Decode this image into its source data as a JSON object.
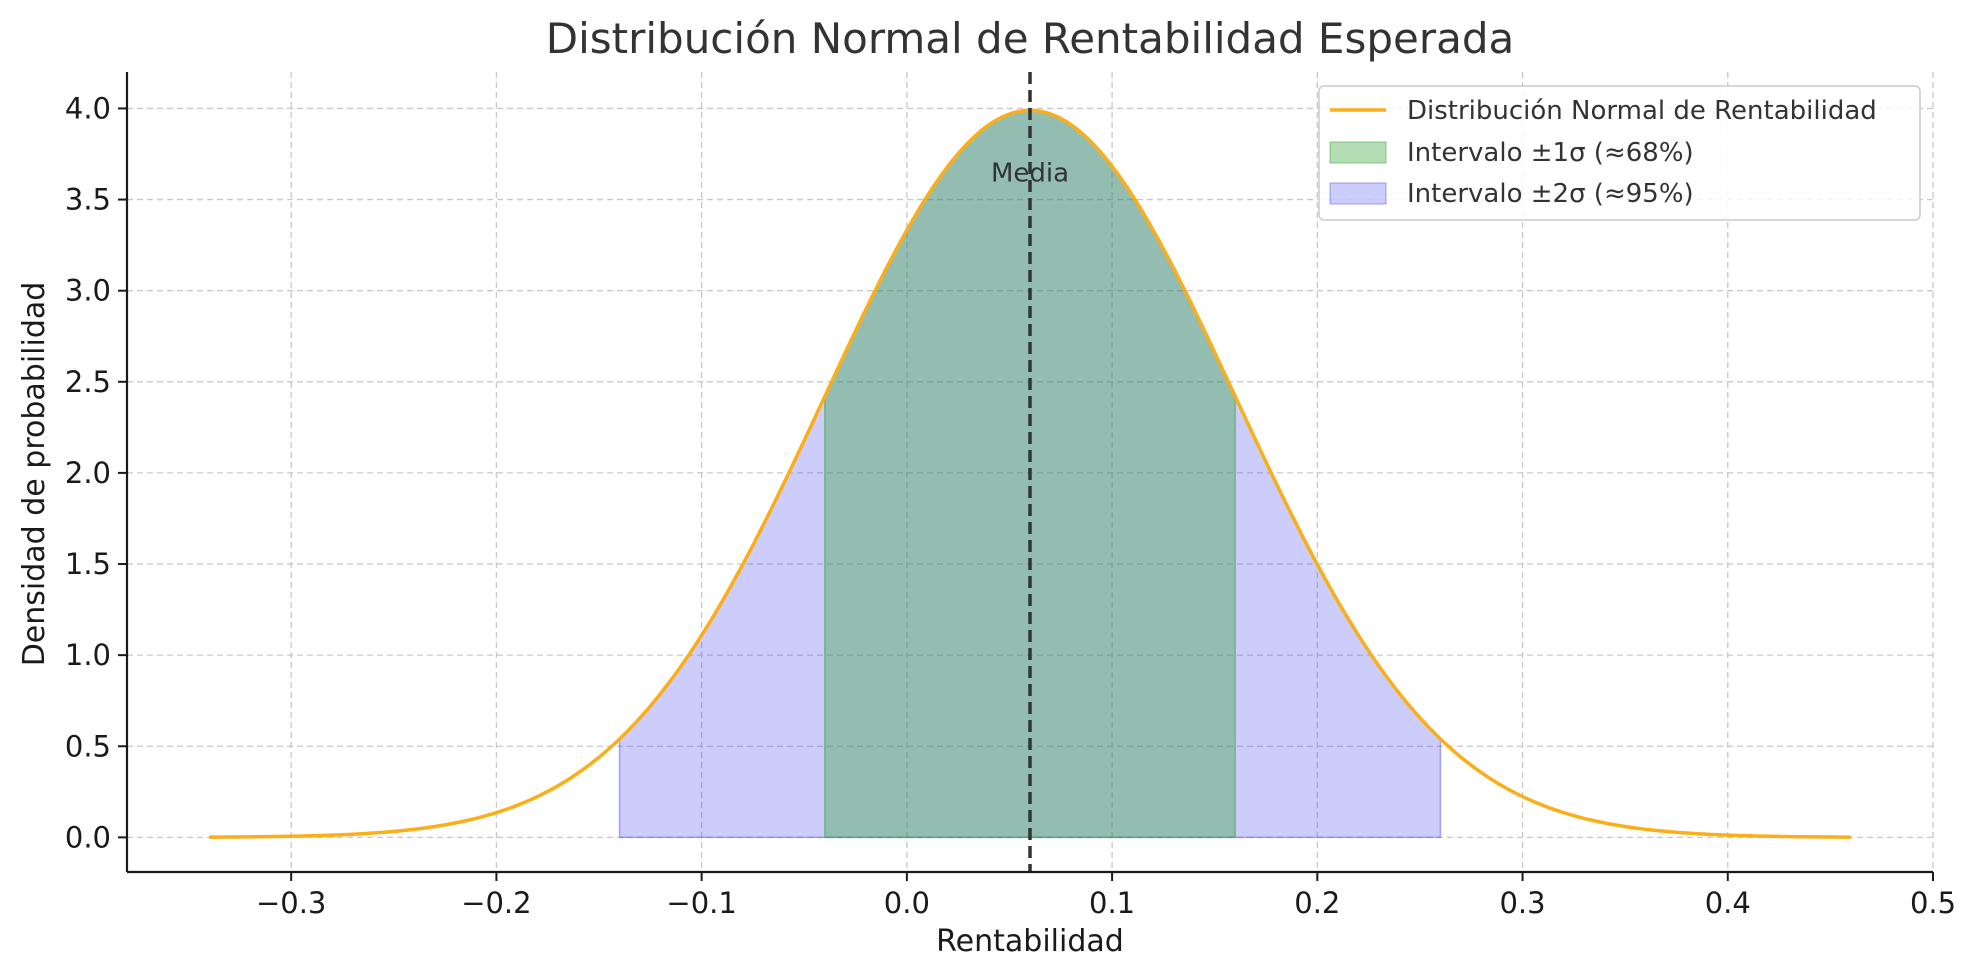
{
  "chart_data": {
    "type": "area",
    "title": "Distribución Normal de Rentabilidad Esperada",
    "xlabel": "Rentabilidad",
    "ylabel": "Densidad de probabilidad",
    "xlim": [
      -0.38,
      0.5
    ],
    "ylim": [
      -0.19,
      4.2
    ],
    "xticks": [
      -0.3,
      -0.2,
      -0.1,
      0.0,
      0.1,
      0.2,
      0.3,
      0.4,
      0.5
    ],
    "xtick_labels": [
      "−0.3",
      "−0.2",
      "−0.1",
      "0.0",
      "0.1",
      "0.2",
      "0.3",
      "0.4",
      "0.5"
    ],
    "yticks": [
      0.0,
      0.5,
      1.0,
      1.5,
      2.0,
      2.5,
      3.0,
      3.5,
      4.0
    ],
    "ytick_labels": [
      "0.0",
      "0.5",
      "1.0",
      "1.5",
      "2.0",
      "2.5",
      "3.0",
      "3.5",
      "4.0"
    ],
    "grid": true,
    "legend_position": "top-right",
    "distribution": {
      "mean": 0.06,
      "std": 0.1,
      "x_range": [
        -0.34,
        0.46
      ]
    },
    "series": [
      {
        "name": "Distribución Normal de Rentabilidad",
        "kind": "line",
        "color": "#FBAE17"
      },
      {
        "name": "Intervalo ±1σ (≈68%)",
        "kind": "band",
        "x_range": [
          -0.04,
          0.16
        ],
        "color": "#2ca02c",
        "opacity": 0.35
      },
      {
        "name": "Intervalo ±2σ (≈95%)",
        "kind": "band",
        "x_range": [
          -0.14,
          0.26
        ],
        "color": "#4b4bf0",
        "opacity": 0.28
      }
    ],
    "annotations": [
      {
        "text": "Media",
        "x": 0.06,
        "y": 3.6
      }
    ],
    "mean_line": {
      "x": 0.06,
      "color": "#333333",
      "style": "dashed"
    }
  }
}
